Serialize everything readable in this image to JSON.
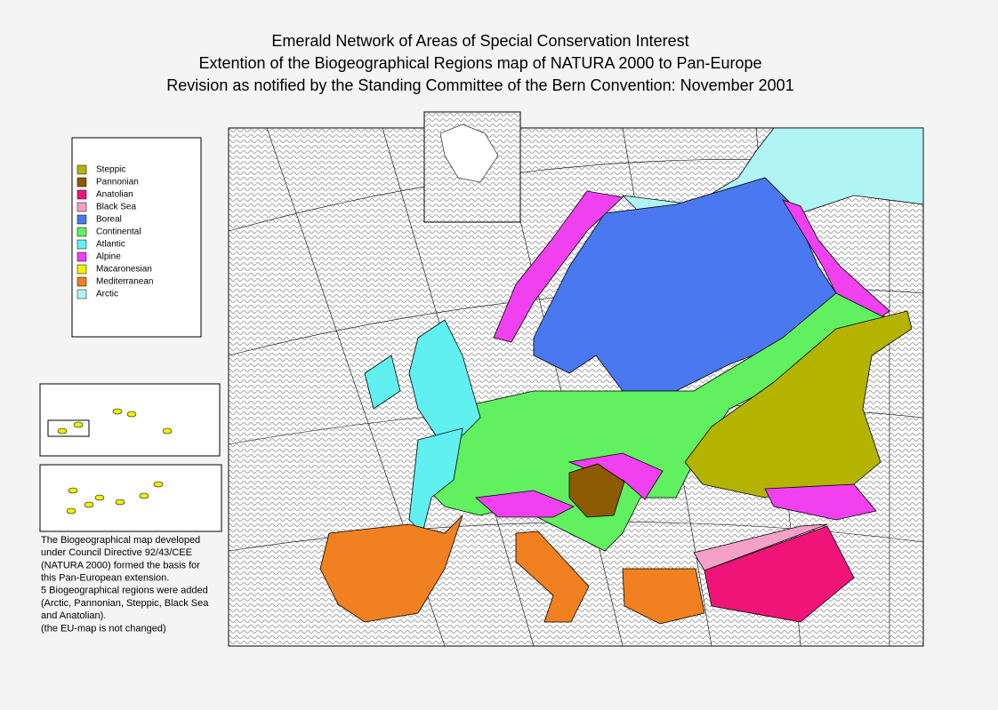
{
  "header": {
    "title_lines": [
      "Emerald Network of Areas of Special Conservation Interest",
      "Extention of the Biogeographical Regions map of NATURA 2000 to Pan-Europe",
      "Revision as notified by the Standing Committee of the Bern Convention: November 2001"
    ]
  },
  "legend": {
    "items": [
      {
        "label": "Steppic",
        "color": "#b4b400"
      },
      {
        "label": "Pannonian",
        "color": "#8c5a00"
      },
      {
        "label": "Anatolian",
        "color": "#f01478"
      },
      {
        "label": "Black Sea",
        "color": "#f5a0c8"
      },
      {
        "label": "Boreal",
        "color": "#4a78f0"
      },
      {
        "label": "Continental",
        "color": "#60f060"
      },
      {
        "label": "Atlantic",
        "color": "#60f0f0"
      },
      {
        "label": "Alpine",
        "color": "#f040f0"
      },
      {
        "label": "Macaronesian",
        "color": "#f0f000"
      },
      {
        "label": "Mediterranean",
        "color": "#f08020"
      },
      {
        "label": "Arctic",
        "color": "#b0f4f4"
      }
    ]
  },
  "note": {
    "lines": [
      "The Biogeographical map developed",
      "under Council Directive 92/43/CEE",
      "(NATURA 2000) formed the basis for",
      "this Pan-European extension.",
      "5 Biogeographical regions were added",
      "(Arctic, Pannonian, Steppic, Black Sea",
      "and Anatolian).",
      "(the EU-map is not changed)"
    ]
  }
}
